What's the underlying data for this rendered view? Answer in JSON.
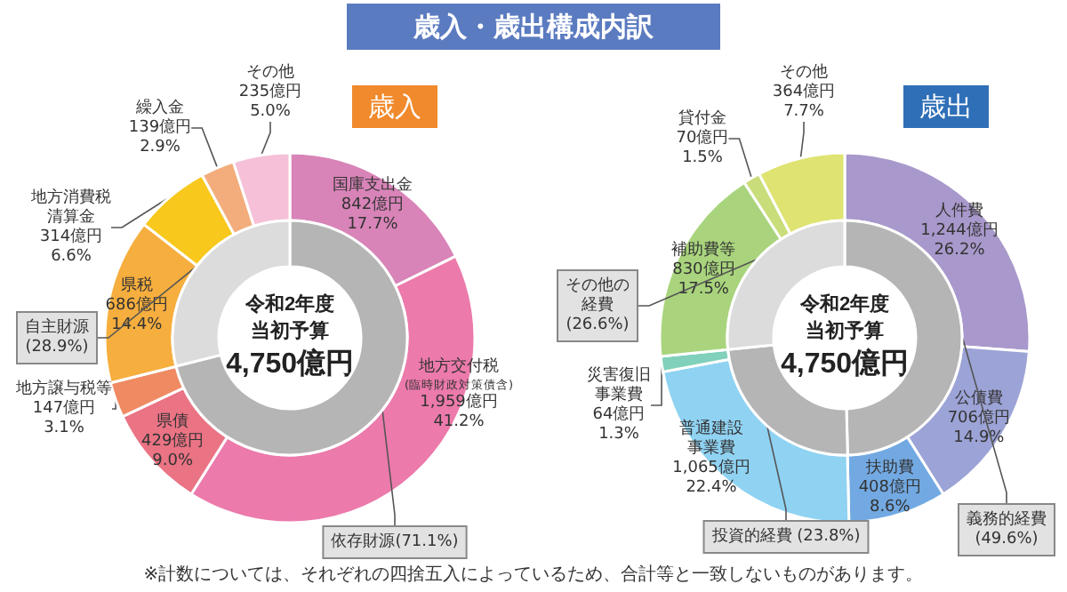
{
  "chart_data": [
    {
      "type": "donut",
      "title": "歳入・歳出構成内訳",
      "subtitle": "歳入",
      "legend": false,
      "categories": [
        "国庫支出金",
        "地方交付税(臨時財政対策債含)",
        "県債",
        "地方譲与税等",
        "県税",
        "地方消費税清算金",
        "繰入金",
        "その他"
      ],
      "values": [
        842,
        1959,
        429,
        147,
        686,
        314,
        139,
        235
      ],
      "colors": [
        "#d884b8",
        "#ec7aab",
        "#ea7384",
        "#ef8a63",
        "#f6ae3e",
        "#f8c81c",
        "#f3ad7c",
        "#f5c0d8"
      ],
      "value_labels": [
        "842億円\n17.7%",
        "1,959億円\n41.2%",
        "429億円\n9.0%",
        "147億円\n3.1%",
        "686億円\n14.4%",
        "314億円\n6.6%",
        "139億円\n2.9%",
        "235億円\n5.0%"
      ],
      "annotations": [
        "令和2年度",
        "当初予算",
        "4,750億円",
        "※計数については、それぞれの四捨五入によっているため、合計等と一致しないものがあります。"
      ]
    },
    {
      "type": "donut",
      "legend": false,
      "categories": [
        "依存財源(71.1%)",
        "自主財源(28.9%)"
      ],
      "values": [
        71.1,
        28.9
      ],
      "colors": [
        "#b5b5b5",
        "#dcdcdc"
      ]
    },
    {
      "type": "donut",
      "subtitle": "歳出",
      "legend": false,
      "categories": [
        "人件費",
        "公債費",
        "扶助費",
        "普通建設事業費",
        "災害復旧事業費",
        "補助費等",
        "貸付金",
        "その他"
      ],
      "values": [
        1244,
        706,
        408,
        1065,
        64,
        830,
        70,
        364
      ],
      "colors": [
        "#a898cb",
        "#9ca3d6",
        "#72a9e2",
        "#8fd2f2",
        "#80d0bb",
        "#a9d47d",
        "#c9dd7a",
        "#dfe372"
      ],
      "value_labels": [
        "1,244億円\n26.2%",
        "706億円\n14.9%",
        "408億円\n8.6%",
        "1,065億円\n22.4%",
        "64億円\n1.3%",
        "830億円\n17.5%",
        "70億円\n1.5%",
        "364億円\n7.7%"
      ],
      "annotations": [
        "令和2年度",
        "当初予算",
        "4,750億円"
      ]
    },
    {
      "type": "donut",
      "legend": false,
      "categories": [
        "義務的経費(49.6%)",
        "投資的経費 (23.8%)",
        "その他の経費(26.6%)"
      ],
      "values": [
        49.6,
        23.8,
        26.6
      ],
      "colors": [
        "#b5b5b5",
        "#b5b5b5",
        "#dcdcdc"
      ]
    }
  ]
}
